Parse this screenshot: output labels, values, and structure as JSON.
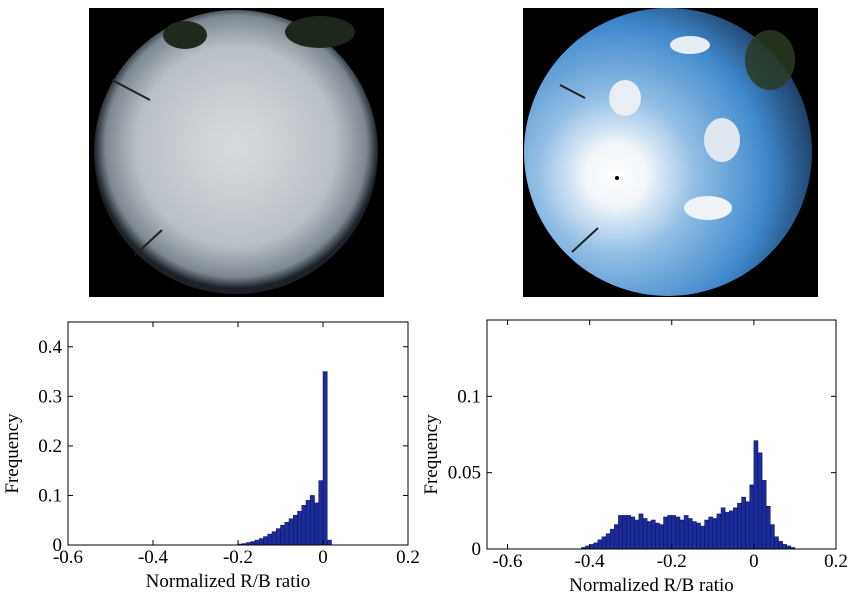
{
  "chart_data": [
    {
      "type": "histogram",
      "x_label": "Normalized R/B ratio",
      "y_label": "Frequency",
      "color": "#1c2c9c",
      "bins": [
        -0.2,
        -0.19,
        -0.18,
        -0.17,
        -0.16,
        -0.15,
        -0.14,
        -0.13,
        -0.12,
        -0.11,
        -0.1,
        -0.09,
        -0.08,
        -0.07,
        -0.06,
        -0.05,
        -0.04,
        -0.03,
        -0.02,
        -0.01,
        0,
        0.01,
        0.02
      ],
      "values": [
        0.002,
        0.003,
        0.005,
        0.007,
        0.01,
        0.013,
        0.017,
        0.022,
        0.027,
        0.033,
        0.04,
        0.046,
        0.053,
        0.06,
        0.068,
        0.08,
        0.09,
        0.1,
        0.085,
        0.13,
        0.35,
        0.01
      ],
      "xlim": [
        -0.6,
        0.2
      ],
      "xticks": [
        -0.6,
        -0.4,
        -0.2,
        0,
        0.2
      ],
      "ylim": [
        0,
        0.45
      ],
      "yticks": [
        0,
        0.1,
        0.2,
        0.3,
        0.4
      ]
    },
    {
      "type": "histogram",
      "x_label": "Normalized R/B ratio",
      "y_label": "Frequency",
      "color": "#1c2c9c",
      "bins": [
        -0.42,
        -0.41,
        -0.4,
        -0.39,
        -0.38,
        -0.37,
        -0.36,
        -0.35,
        -0.34,
        -0.33,
        -0.32,
        -0.31,
        -0.3,
        -0.29,
        -0.28,
        -0.27,
        -0.26,
        -0.25,
        -0.24,
        -0.23,
        -0.22,
        -0.21,
        -0.2,
        -0.19,
        -0.18,
        -0.17,
        -0.16,
        -0.15,
        -0.14,
        -0.13,
        -0.12,
        -0.11,
        -0.1,
        -0.09,
        -0.08,
        -0.07,
        -0.06,
        -0.05,
        -0.04,
        -0.03,
        -0.02,
        -0.01,
        0,
        0.01,
        0.02,
        0.03,
        0.04,
        0.05,
        0.06,
        0.07,
        0.08,
        0.09,
        0.1
      ],
      "values": [
        0.001,
        0.002,
        0.003,
        0.004,
        0.006,
        0.008,
        0.01,
        0.013,
        0.016,
        0.022,
        0.022,
        0.022,
        0.021,
        0.019,
        0.023,
        0.02,
        0.018,
        0.019,
        0.017,
        0.016,
        0.021,
        0.022,
        0.022,
        0.021,
        0.019,
        0.022,
        0.02,
        0.018,
        0.017,
        0.015,
        0.019,
        0.021,
        0.02,
        0.023,
        0.027,
        0.024,
        0.025,
        0.027,
        0.03,
        0.034,
        0.031,
        0.042,
        0.071,
        0.063,
        0.045,
        0.028,
        0.016,
        0.008,
        0.005,
        0.003,
        0.002,
        0.001
      ],
      "xlim": [
        -0.65,
        0.2
      ],
      "xticks": [
        -0.6,
        -0.4,
        -0.2,
        0,
        0.2
      ],
      "ylim": [
        0,
        0.15
      ],
      "yticks": [
        0,
        0.05,
        0.1
      ]
    }
  ]
}
